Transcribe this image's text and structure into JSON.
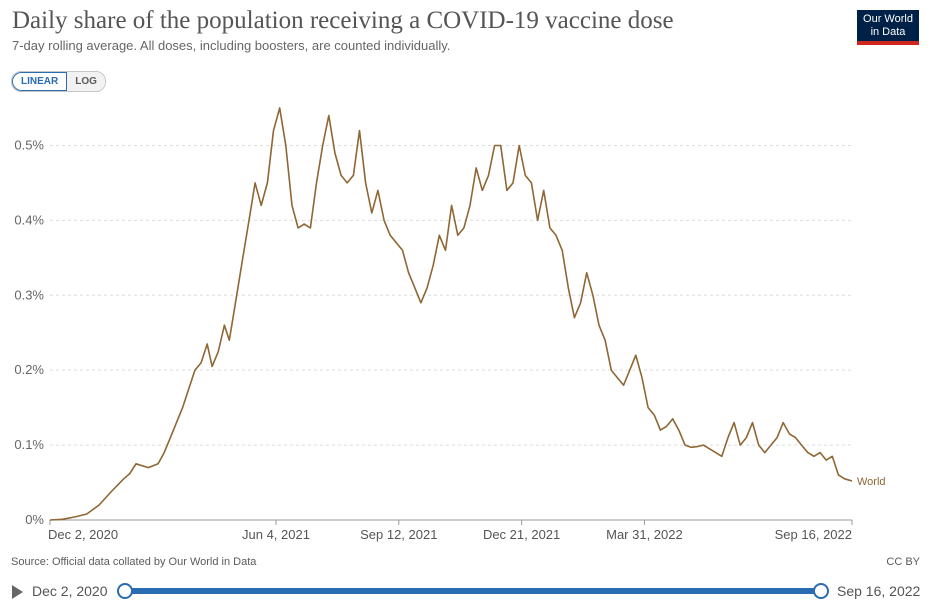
{
  "header": {
    "title": "Daily share of the population receiving a COVID-19 vaccine dose",
    "subtitle": "7-day rolling average. All doses, including boosters, are counted individually.",
    "logo_line1": "Our World",
    "logo_line2": "in Data"
  },
  "controls": {
    "linear_label": "LINEAR",
    "log_label": "LOG",
    "active_scale": "LINEAR"
  },
  "footer": {
    "source": "Source: Official data collated by Our World in Data",
    "license": "CC BY"
  },
  "timeline": {
    "start_label": "Dec 2, 2020",
    "end_label": "Sep 16, 2022"
  },
  "colors": {
    "series": "#8f6634",
    "grid": "#dddddd",
    "accent": "#2a6cb2",
    "logo_bg": "#002147",
    "logo_bar": "#ce261e"
  },
  "chart_data": {
    "type": "line",
    "title": "Daily share of the population receiving a COVID-19 vaccine dose",
    "subtitle": "7-day rolling average. All doses, including boosters, are counted individually.",
    "y_scale": "linear",
    "ylim": [
      0,
      0.55
    ],
    "y_ticks": [
      0,
      0.1,
      0.2,
      0.3,
      0.4,
      0.5
    ],
    "y_tick_labels": [
      "0%",
      "0.1%",
      "0.2%",
      "0.3%",
      "0.4%",
      "0.5%"
    ],
    "x_range": [
      "2020-12-02",
      "2022-09-16"
    ],
    "x_ticks": [
      "2020-12-02",
      "2021-06-04",
      "2021-09-12",
      "2021-12-21",
      "2022-03-31",
      "2022-09-16"
    ],
    "x_tick_labels": [
      "Dec 2, 2020",
      "Jun 4, 2021",
      "Sep 12, 2021",
      "Dec 21, 2021",
      "Mar 31, 2022",
      "Sep 16, 2022"
    ],
    "grid": "horizontal dashed",
    "series": [
      {
        "name": "World",
        "points": [
          [
            "2020-12-02",
            0.0
          ],
          [
            "2020-12-12",
            0.001
          ],
          [
            "2020-12-22",
            0.004
          ],
          [
            "2021-01-01",
            0.008
          ],
          [
            "2021-01-11",
            0.02
          ],
          [
            "2021-01-21",
            0.038
          ],
          [
            "2021-01-31",
            0.055
          ],
          [
            "2021-02-05",
            0.062
          ],
          [
            "2021-02-10",
            0.075
          ],
          [
            "2021-02-20",
            0.07
          ],
          [
            "2021-02-28",
            0.075
          ],
          [
            "2021-03-05",
            0.09
          ],
          [
            "2021-03-10",
            0.11
          ],
          [
            "2021-03-20",
            0.15
          ],
          [
            "2021-03-30",
            0.2
          ],
          [
            "2021-04-04",
            0.21
          ],
          [
            "2021-04-09",
            0.235
          ],
          [
            "2021-04-13",
            0.205
          ],
          [
            "2021-04-18",
            0.225
          ],
          [
            "2021-04-23",
            0.26
          ],
          [
            "2021-04-27",
            0.24
          ],
          [
            "2021-05-03",
            0.3
          ],
          [
            "2021-05-08",
            0.35
          ],
          [
            "2021-05-13",
            0.4
          ],
          [
            "2021-05-18",
            0.45
          ],
          [
            "2021-05-23",
            0.42
          ],
          [
            "2021-05-28",
            0.45
          ],
          [
            "2021-06-02",
            0.52
          ],
          [
            "2021-06-07",
            0.55
          ],
          [
            "2021-06-12",
            0.5
          ],
          [
            "2021-06-17",
            0.42
          ],
          [
            "2021-06-22",
            0.39
          ],
          [
            "2021-06-27",
            0.395
          ],
          [
            "2021-07-02",
            0.39
          ],
          [
            "2021-07-07",
            0.45
          ],
          [
            "2021-07-12",
            0.5
          ],
          [
            "2021-07-17",
            0.54
          ],
          [
            "2021-07-22",
            0.49
          ],
          [
            "2021-07-27",
            0.46
          ],
          [
            "2021-08-01",
            0.45
          ],
          [
            "2021-08-06",
            0.46
          ],
          [
            "2021-08-11",
            0.52
          ],
          [
            "2021-08-16",
            0.45
          ],
          [
            "2021-08-21",
            0.41
          ],
          [
            "2021-08-26",
            0.44
          ],
          [
            "2021-08-31",
            0.4
          ],
          [
            "2021-09-05",
            0.38
          ],
          [
            "2021-09-10",
            0.37
          ],
          [
            "2021-09-15",
            0.36
          ],
          [
            "2021-09-20",
            0.33
          ],
          [
            "2021-09-25",
            0.31
          ],
          [
            "2021-09-30",
            0.29
          ],
          [
            "2021-10-05",
            0.31
          ],
          [
            "2021-10-10",
            0.34
          ],
          [
            "2021-10-15",
            0.38
          ],
          [
            "2021-10-20",
            0.36
          ],
          [
            "2021-10-25",
            0.42
          ],
          [
            "2021-10-30",
            0.38
          ],
          [
            "2021-11-04",
            0.39
          ],
          [
            "2021-11-09",
            0.42
          ],
          [
            "2021-11-14",
            0.47
          ],
          [
            "2021-11-19",
            0.44
          ],
          [
            "2021-11-24",
            0.46
          ],
          [
            "2021-11-29",
            0.5
          ],
          [
            "2021-12-04",
            0.5
          ],
          [
            "2021-12-09",
            0.44
          ],
          [
            "2021-12-14",
            0.45
          ],
          [
            "2021-12-19",
            0.5
          ],
          [
            "2021-12-24",
            0.46
          ],
          [
            "2021-12-29",
            0.45
          ],
          [
            "2022-01-03",
            0.4
          ],
          [
            "2022-01-08",
            0.44
          ],
          [
            "2022-01-13",
            0.39
          ],
          [
            "2022-01-18",
            0.38
          ],
          [
            "2022-01-23",
            0.36
          ],
          [
            "2022-01-28",
            0.31
          ],
          [
            "2022-02-02",
            0.27
          ],
          [
            "2022-02-07",
            0.29
          ],
          [
            "2022-02-12",
            0.33
          ],
          [
            "2022-02-17",
            0.3
          ],
          [
            "2022-02-22",
            0.26
          ],
          [
            "2022-02-27",
            0.24
          ],
          [
            "2022-03-04",
            0.2
          ],
          [
            "2022-03-09",
            0.19
          ],
          [
            "2022-03-14",
            0.18
          ],
          [
            "2022-03-19",
            0.2
          ],
          [
            "2022-03-24",
            0.22
          ],
          [
            "2022-03-29",
            0.19
          ],
          [
            "2022-04-03",
            0.15
          ],
          [
            "2022-04-08",
            0.14
          ],
          [
            "2022-04-13",
            0.12
          ],
          [
            "2022-04-18",
            0.125
          ],
          [
            "2022-04-23",
            0.135
          ],
          [
            "2022-04-28",
            0.12
          ],
          [
            "2022-05-03",
            0.1
          ],
          [
            "2022-05-08",
            0.097
          ],
          [
            "2022-05-13",
            0.098
          ],
          [
            "2022-05-18",
            0.1
          ],
          [
            "2022-05-23",
            0.095
          ],
          [
            "2022-05-28",
            0.09
          ],
          [
            "2022-06-02",
            0.085
          ],
          [
            "2022-06-07",
            0.11
          ],
          [
            "2022-06-12",
            0.13
          ],
          [
            "2022-06-17",
            0.1
          ],
          [
            "2022-06-22",
            0.11
          ],
          [
            "2022-06-27",
            0.13
          ],
          [
            "2022-07-02",
            0.1
          ],
          [
            "2022-07-07",
            0.09
          ],
          [
            "2022-07-12",
            0.1
          ],
          [
            "2022-07-17",
            0.11
          ],
          [
            "2022-07-22",
            0.13
          ],
          [
            "2022-07-27",
            0.115
          ],
          [
            "2022-08-01",
            0.11
          ],
          [
            "2022-08-06",
            0.1
          ],
          [
            "2022-08-11",
            0.09
          ],
          [
            "2022-08-16",
            0.085
          ],
          [
            "2022-08-21",
            0.09
          ],
          [
            "2022-08-26",
            0.08
          ],
          [
            "2022-08-31",
            0.085
          ],
          [
            "2022-09-05",
            0.06
          ],
          [
            "2022-09-10",
            0.055
          ],
          [
            "2022-09-16",
            0.052
          ]
        ]
      }
    ]
  }
}
